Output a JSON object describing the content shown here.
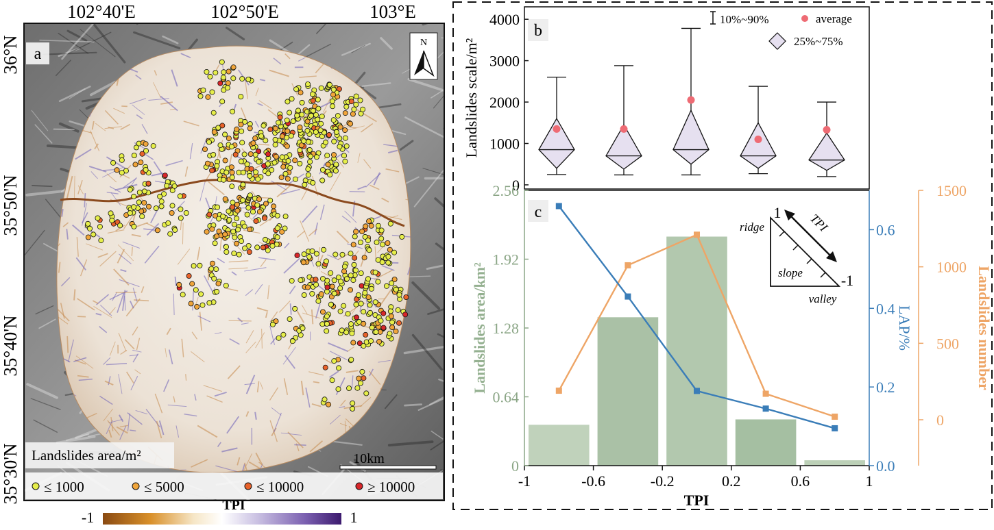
{
  "panel_a": {
    "label": "a",
    "north_label": "N",
    "lon_labels": [
      "102°40'E",
      "102°50'E",
      "103°E"
    ],
    "lat_labels": [
      "36°N",
      "35°50'N",
      "35°40'N",
      "35°30'N"
    ],
    "lat_label_top": "36°N",
    "lat_label_mid": "35°50'N",
    "lat_label_low": "35°40'N",
    "lat_label_bot": "35°30'N",
    "lat_label_bottom": "35°30'N",
    "scale_bar_label": "10km",
    "legend_title": "Landslides area/m²",
    "legend_items": [
      {
        "label": "≤ 1000",
        "color": "#e6ee4a"
      },
      {
        "label": "≤ 5000",
        "color": "#f0a53a"
      },
      {
        "label": "≤ 10000",
        "color": "#e8622a"
      },
      {
        "label": "≥ 10000",
        "color": "#d8262a"
      }
    ],
    "colorbar": {
      "title": "TPI",
      "min_label": "-1",
      "max_label": "1",
      "colors": [
        "#8a4a12",
        "#d9902a",
        "#f6e6c6",
        "#ffffff",
        "#c9c0e2",
        "#7a5fb0",
        "#3c1a6e"
      ]
    }
  },
  "chart_data": [
    {
      "type": "box",
      "panel": "b",
      "ylabel": "Landslides scale/m²",
      "ylim": [
        -100,
        4300
      ],
      "yticks": [
        0,
        1000,
        2000,
        3000,
        4000
      ],
      "categories": [
        "-0.8",
        "-0.4",
        "0",
        "0.4",
        "0.8"
      ],
      "p10": [
        250,
        240,
        240,
        270,
        200
      ],
      "p25": [
        400,
        380,
        500,
        400,
        350
      ],
      "median": [
        850,
        700,
        850,
        700,
        600
      ],
      "p75": [
        1600,
        1450,
        1800,
        1500,
        1250
      ],
      "p90": [
        2600,
        2880,
        3780,
        2380,
        2000
      ],
      "average": [
        1350,
        1350,
        2050,
        1100,
        1330
      ],
      "legend": {
        "whisker_label": "10%~90%",
        "average_label": "average",
        "box_label": "25%~75%"
      },
      "colors": {
        "box_fill": "#e6e0f0",
        "average": "#ee6b74"
      }
    },
    {
      "type": "bar+line",
      "panel": "c",
      "xlabel": "TPI",
      "xlim": [
        -1,
        1
      ],
      "xticks": [
        "-1",
        "-0.6",
        "-0.2",
        "0.2",
        "0.6",
        "1"
      ],
      "bars": {
        "ylabel": "Landslides area/km²",
        "ylim": [
          0,
          2.56
        ],
        "yticks": [
          "0",
          "0.64",
          "1.28",
          "1.92",
          "2.56"
        ],
        "bins": [
          [
            -1,
            -0.6
          ],
          [
            -0.6,
            -0.2
          ],
          [
            -0.2,
            0.2
          ],
          [
            0.2,
            0.6
          ],
          [
            0.6,
            1
          ]
        ],
        "values": [
          0.38,
          1.38,
          2.13,
          0.43,
          0.05
        ],
        "colors": [
          "#c0d2bb",
          "#aac1a6",
          "#b2c8ae",
          "#a5bfa2",
          "#bcd0b7"
        ]
      },
      "lap": {
        "ylabel": "LAP/%",
        "ylim": [
          0,
          0.7
        ],
        "yticks": [
          "0.0",
          "0.2",
          "0.4",
          "0.6"
        ],
        "x": [
          -0.8,
          -0.4,
          0,
          0.4,
          0.8
        ],
        "values": [
          0.66,
          0.43,
          0.19,
          0.145,
          0.095
        ],
        "color": "#3a7db8"
      },
      "count": {
        "ylabel": "Landslides number",
        "ylim": [
          -300,
          1500
        ],
        "yticks": [
          "0",
          "500",
          "1000",
          "1500"
        ],
        "x": [
          -0.8,
          -0.4,
          0,
          0.4,
          0.8
        ],
        "values": [
          190,
          1010,
          1210,
          170,
          20
        ],
        "color": "#eea566"
      },
      "inset": {
        "top": "1",
        "bottom": "-1",
        "ridge": "ridge",
        "slope": "slope",
        "valley": "valley",
        "axis": "TPI"
      }
    }
  ]
}
